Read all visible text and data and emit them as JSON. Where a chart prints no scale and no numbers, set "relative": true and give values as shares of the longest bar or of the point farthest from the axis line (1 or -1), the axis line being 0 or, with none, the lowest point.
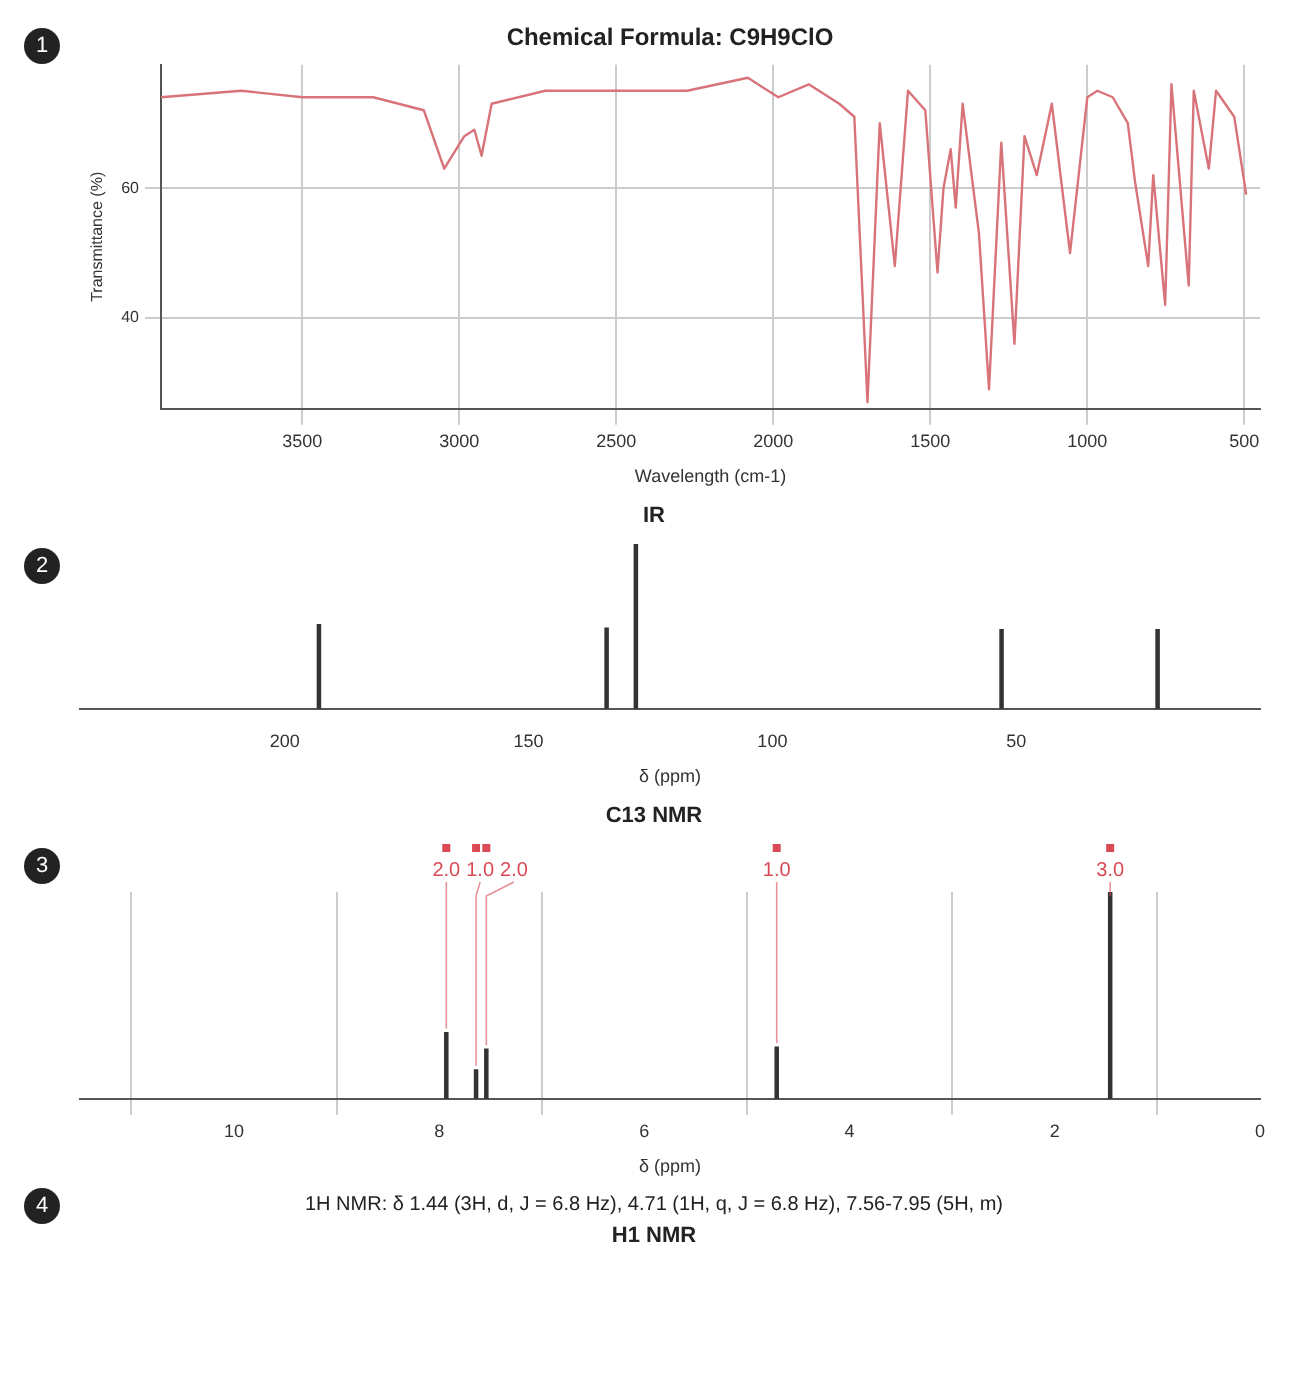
{
  "chart_data": [
    {
      "type": "line",
      "title": "Chemical Formula: C9H9ClO",
      "xlabel": "Wavelength (cm-1)",
      "ylabel": "Transmittance (%)",
      "annotations": [
        "1",
        "IR"
      ],
      "x": [
        3950,
        3694,
        3500,
        3274,
        3113,
        3048,
        2984,
        2952,
        2929,
        2897,
        2726,
        2468,
        2274,
        2081,
        1984,
        1887,
        1790,
        1742,
        1700,
        1661,
        1613,
        1571,
        1516,
        1477,
        1458,
        1435,
        1419,
        1397,
        1345,
        1313,
        1274,
        1232,
        1200,
        1161,
        1113,
        1055,
        1000,
        968,
        919,
        871,
        848,
        806,
        790,
        752,
        732,
        677,
        661,
        629,
        613,
        590,
        532,
        494
      ],
      "series": [
        {
          "color": "#d9737a",
          "values": [
            74,
            75,
            74,
            74,
            72,
            63,
            68,
            69,
            65,
            73,
            75,
            75,
            75,
            77,
            74,
            76,
            73,
            71,
            27,
            70,
            48,
            75,
            72,
            47,
            60,
            66,
            57,
            73,
            53,
            29,
            67,
            36,
            68,
            62,
            73,
            50,
            74,
            75,
            74,
            70,
            61,
            48,
            62,
            42,
            76,
            45,
            75,
            67,
            63,
            75,
            71,
            59
          ]
        }
      ],
      "xlim": [
        3950,
        450
      ],
      "ylim": [
        26,
        79
      ],
      "xticks": [
        3500,
        3000,
        2500,
        2000,
        1500,
        1000,
        500
      ],
      "yticks": [
        40,
        60
      ],
      "grid": true
    },
    {
      "type": "bar",
      "relative": true,
      "xlabel": "δ (ppm)",
      "annotations": [
        "2",
        "C13 NMR"
      ],
      "x": [
        193,
        134,
        128,
        53,
        21
      ],
      "series": [
        {
          "color": "#333333",
          "values": [
            0.51,
            0.49,
            1,
            0.48,
            0.48
          ]
        }
      ],
      "xlim": [
        242,
        0
      ],
      "xticks": [
        200,
        150,
        100,
        50
      ]
    },
    {
      "type": "bar",
      "relative": true,
      "xlabel": "δ (ppm)",
      "annotations": [
        "3",
        "4",
        "1H NMR: δ 1.44 (3H, d, J = 6.8 Hz), 4.71 (1H, q, J = 6.8 Hz), 7.56-7.95 (5H, m)",
        "H1 NMR",
        {
          "text": "2.0",
          "x": 7.93,
          "y": 0.32
        },
        {
          "text": "1.0",
          "x": 7.64,
          "y": 0.14
        },
        {
          "text": "2.0",
          "x": 7.54,
          "y": 0.24
        },
        {
          "text": "1.0",
          "x": 4.71,
          "y": 0.25
        },
        {
          "text": "3.0",
          "x": 1.46,
          "y": 1
        }
      ],
      "x": [
        7.93,
        7.64,
        7.54,
        4.71,
        1.46
      ],
      "series": [
        {
          "color": "#333333",
          "values": [
            0.32,
            0.14,
            0.24,
            0.25,
            1
          ]
        }
      ],
      "xlim": [
        11.5,
        0
      ],
      "xticks": [
        10,
        8,
        6,
        4,
        2,
        0
      ],
      "grid": "x"
    }
  ]
}
